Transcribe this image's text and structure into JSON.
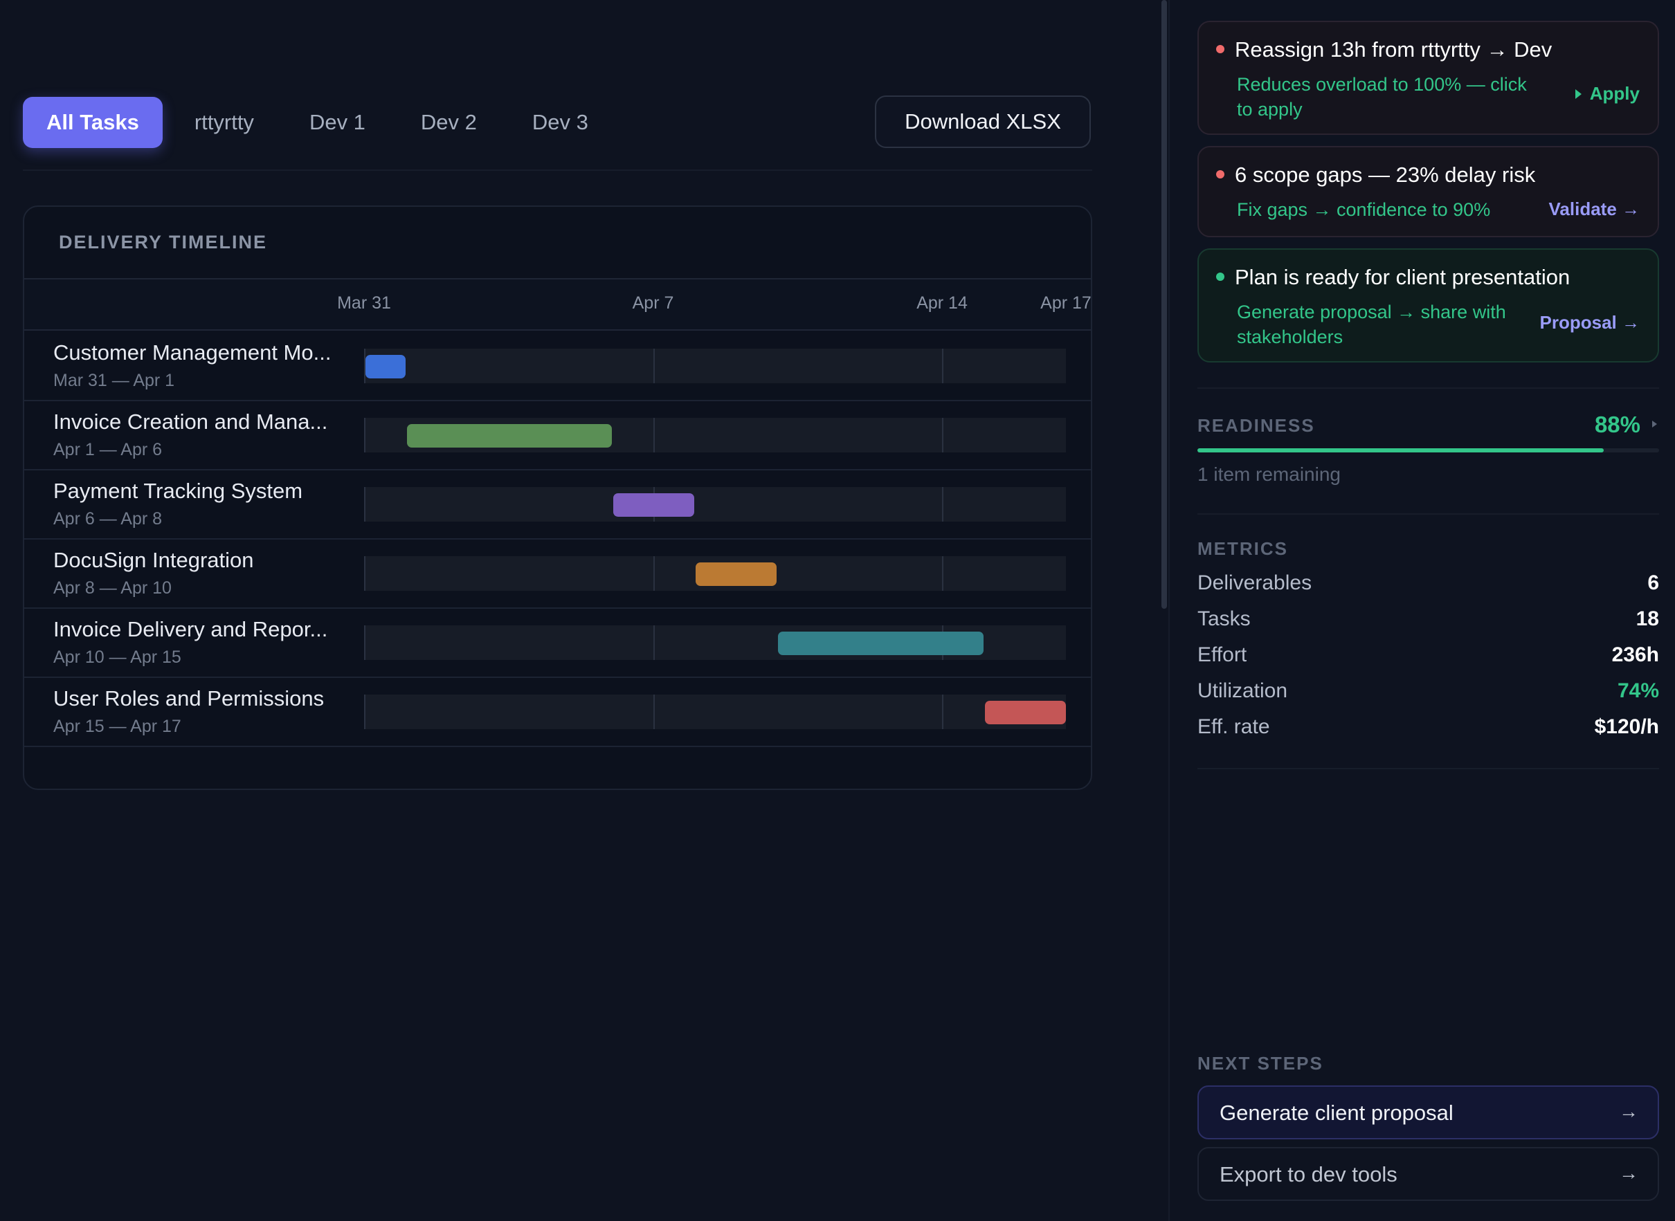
{
  "tabs": [
    {
      "label": "All Tasks",
      "active": true
    },
    {
      "label": "rttyrtty",
      "active": false
    },
    {
      "label": "Dev 1",
      "active": false
    },
    {
      "label": "Dev 2",
      "active": false
    },
    {
      "label": "Dev 3",
      "active": false
    }
  ],
  "download_label": "Download XLSX",
  "timeline": {
    "title": "DELIVERY TIMELINE",
    "dates": [
      {
        "label": "Mar 31",
        "day": 0
      },
      {
        "label": "Apr 7",
        "day": 7
      },
      {
        "label": "Apr 14",
        "day": 14
      },
      {
        "label": "Apr 17",
        "day": 17
      }
    ],
    "rows": [
      {
        "name": "Customer Management Mo...",
        "dates": "Mar 31 — Apr 1",
        "start": 0,
        "end": 1,
        "color": "#3b6fd8"
      },
      {
        "name": "Invoice Creation and Mana...",
        "dates": "Apr 1 — Apr 6",
        "start": 1,
        "end": 6,
        "color": "#5a8f55"
      },
      {
        "name": "Payment Tracking System",
        "dates": "Apr 6 — Apr 8",
        "start": 6,
        "end": 8,
        "color": "#7e5ec0"
      },
      {
        "name": "DocuSign Integration",
        "dates": "Apr 8 — Apr 10",
        "start": 8,
        "end": 10,
        "color": "#bb7a33"
      },
      {
        "name": "Invoice Delivery and Repor...",
        "dates": "Apr 10 — Apr 15",
        "start": 10,
        "end": 15,
        "color": "#33808a"
      },
      {
        "name": "User Roles and Permissions",
        "dates": "Apr 15 — Apr 17",
        "start": 15,
        "end": 17,
        "color": "#c45656"
      }
    ]
  },
  "alerts": [
    {
      "title": "Reassign 13h from rttyrtty → Dev",
      "sub_lines": [
        "Reduces overload to 100% — click",
        "to apply"
      ],
      "action": "Apply",
      "dot_color": "#f06b6b"
    },
    {
      "title": "6 scope gaps — 23% delay risk",
      "sub_lines": [
        "Fix gaps → confidence to 90%"
      ],
      "action": "Validate →",
      "dot_color": "#f06b6b"
    },
    {
      "title": "Plan is ready for client presentation",
      "sub_lines": [
        "Generate proposal → share with",
        "stakeholders"
      ],
      "action": "Proposal →",
      "dot_color": "#33c68a"
    }
  ],
  "readiness": {
    "label": "READINESS",
    "value": "88%",
    "percent": 88,
    "remaining": "1 item remaining"
  },
  "metrics": {
    "label": "METRICS",
    "items": [
      {
        "key": "Deliverables",
        "value": "6"
      },
      {
        "key": "Tasks",
        "value": "18"
      },
      {
        "key": "Effort",
        "value": "236h"
      },
      {
        "key": "Utilization",
        "value": "74%"
      },
      {
        "key": "Eff. rate",
        "value": "$120/h"
      }
    ]
  },
  "next_steps": {
    "label": "NEXT STEPS",
    "items": [
      {
        "label": "Generate client proposal",
        "arrow": "→"
      },
      {
        "label": "Export to dev tools",
        "arrow": "→"
      }
    ]
  }
}
